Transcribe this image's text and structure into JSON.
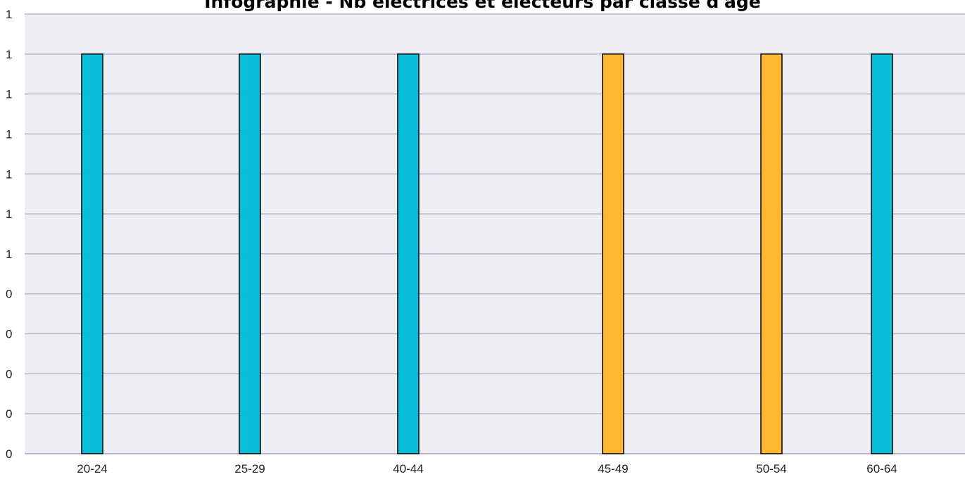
{
  "chart_data": {
    "type": "bar",
    "title": "Infographie - Nb électrices et électeurs par classe d'âge",
    "categories": [
      "20-24",
      "25-29",
      "40-44",
      "45-49",
      "50-54",
      "60-64"
    ],
    "series": [
      {
        "values": [
          1,
          1,
          1,
          0,
          0,
          1
        ],
        "color": "#08BED6"
      },
      {
        "values": [
          0,
          0,
          0,
          1,
          1,
          0
        ],
        "color": "#FFB732"
      }
    ],
    "y_tick_labels": [
      "0",
      "0",
      "0",
      "0",
      "0",
      "1",
      "1",
      "1",
      "1",
      "1",
      "1",
      "1"
    ],
    "ylim": [
      0,
      1.1
    ],
    "grid": true,
    "plot_background": "#EFEEF5",
    "gridline_color": "#B4B8D2"
  }
}
